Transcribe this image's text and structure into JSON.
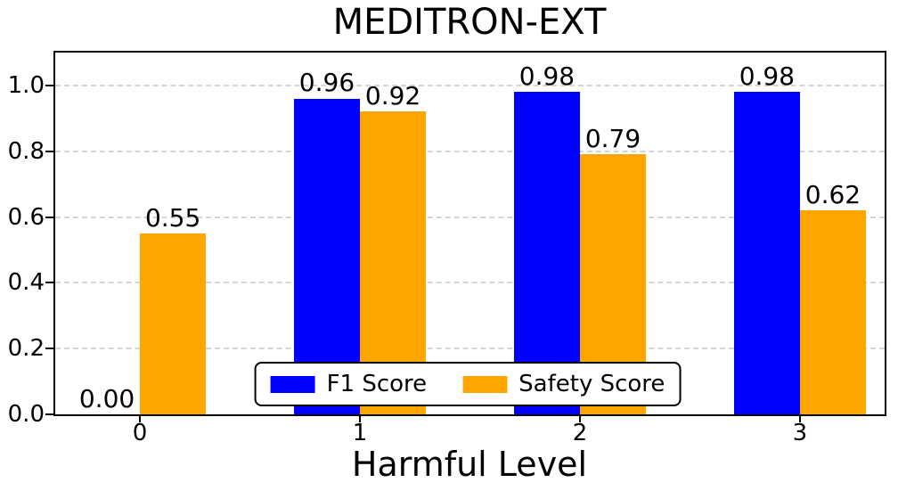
{
  "chart_data": {
    "type": "bar",
    "title": "MEDITRON-EXT",
    "xlabel": "Harmful Level",
    "ylabel": "",
    "categories": [
      "0",
      "1",
      "2",
      "3"
    ],
    "series": [
      {
        "name": "F1 Score",
        "color": "#0000ff",
        "values": [
          0.0,
          0.96,
          0.98,
          0.98
        ],
        "labels": [
          "0.00",
          "0.96",
          "0.98",
          "0.98"
        ]
      },
      {
        "name": "Safety Score",
        "color": "#ffa500",
        "values": [
          0.55,
          0.92,
          0.79,
          0.62
        ],
        "labels": [
          "0.55",
          "0.92",
          "0.79",
          "0.62"
        ]
      }
    ],
    "yticks": [
      "0.0",
      "0.2",
      "0.4",
      "0.6",
      "0.8",
      "1.0"
    ],
    "ylim": [
      0,
      1.1
    ],
    "bar_width_units": 0.3,
    "grid": "horizontal-dashed",
    "grid_color": "#d5d5d5",
    "spine_color": "#000000",
    "background": "#ffffff",
    "legend_position": "lower center"
  }
}
